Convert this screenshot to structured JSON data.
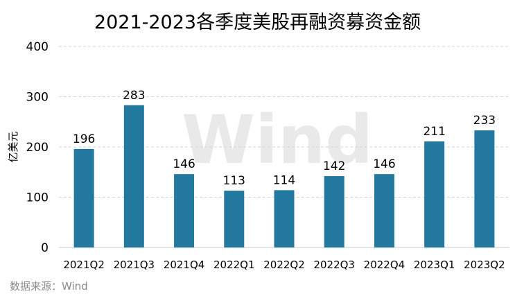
{
  "chart_data": {
    "type": "bar",
    "title": "2021-2023各季度美股再融资募资金额",
    "ylabel": "亿美元",
    "xlabel": "",
    "categories": [
      "2021Q2",
      "2021Q3",
      "2021Q4",
      "2022Q1",
      "2022Q2",
      "2022Q3",
      "2022Q4",
      "2023Q1",
      "2023Q2"
    ],
    "values": [
      196,
      283,
      146,
      113,
      114,
      142,
      146,
      211,
      233
    ],
    "ylim": [
      0,
      400
    ],
    "yticks": [
      0,
      100,
      200,
      300,
      400
    ],
    "grid": true,
    "bar_color": "#23789f",
    "watermark": "Wind"
  },
  "footer": {
    "source": "数据来源：Wind"
  }
}
